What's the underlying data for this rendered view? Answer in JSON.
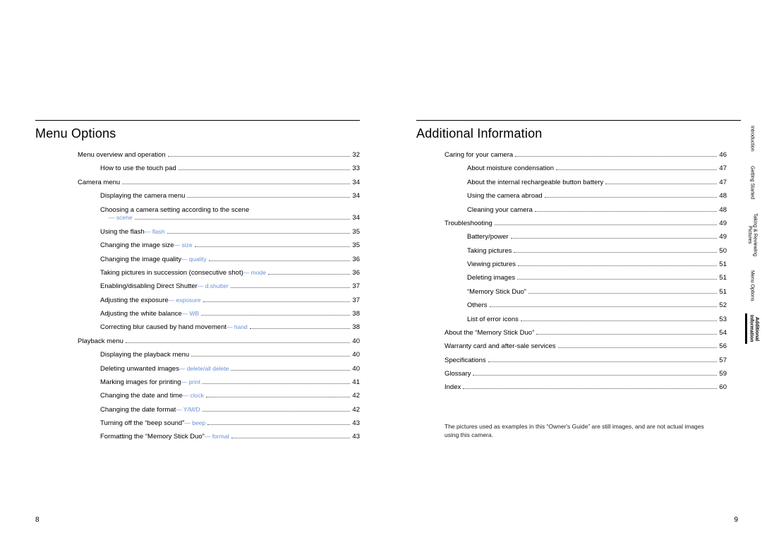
{
  "page_left": {
    "title": "Menu Options",
    "page_number": "8",
    "entries": [
      {
        "indent": 0,
        "label": "Menu overview and operation",
        "tag": "",
        "page": "32"
      },
      {
        "indent": 1,
        "label": "How to use the touch pad",
        "tag": "",
        "page": "33"
      },
      {
        "indent": 0,
        "label": "Camera menu",
        "tag": "",
        "page": "34"
      },
      {
        "indent": 1,
        "label": "Displaying the camera menu",
        "tag": "",
        "page": "34"
      },
      {
        "indent": 1,
        "wrap": true,
        "label": "Choosing a camera setting according to the scene",
        "tag": "— scene",
        "page": "34"
      },
      {
        "indent": 1,
        "label": "Using the flash ",
        "tag": "— flash",
        "page": "35"
      },
      {
        "indent": 1,
        "label": "Changing the image size ",
        "tag": "— size",
        "page": "35"
      },
      {
        "indent": 1,
        "label": "Changing the image quality ",
        "tag": "— quality",
        "page": "36"
      },
      {
        "indent": 1,
        "label": "Taking pictures in succession (consecutive shot) ",
        "tag": "— mode",
        "page": "36"
      },
      {
        "indent": 1,
        "label": "Enabling/disabling Direct Shutter ",
        "tag": "— d.shutter",
        "page": "37"
      },
      {
        "indent": 1,
        "label": "Adjusting the exposure ",
        "tag": "— exposure",
        "page": "37"
      },
      {
        "indent": 1,
        "label": "Adjusting the white balance ",
        "tag": "— WB",
        "page": "38"
      },
      {
        "indent": 1,
        "label": "Correcting blur caused by hand movement ",
        "tag": "— hand",
        "page": "38"
      },
      {
        "indent": 0,
        "label": "Playback menu",
        "tag": "",
        "page": "40"
      },
      {
        "indent": 1,
        "label": "Displaying the playback menu",
        "tag": "",
        "page": "40"
      },
      {
        "indent": 1,
        "label": "Deleting unwanted images ",
        "tag": "— delete/all delete",
        "page": "40"
      },
      {
        "indent": 1,
        "label": "Marking images for printing ",
        "tag": "— print",
        "page": "41"
      },
      {
        "indent": 1,
        "label": "Changing the date and time ",
        "tag": "— clock",
        "page": "42"
      },
      {
        "indent": 1,
        "label": "Changing the date format ",
        "tag": "— Y/M/D",
        "page": "42"
      },
      {
        "indent": 1,
        "label": "Turning off the “beep sound” ",
        "tag": "— beep",
        "page": "43"
      },
      {
        "indent": 1,
        "label": "Formatting the “Memory Stick Duo” ",
        "tag": "— format",
        "page": "43"
      }
    ]
  },
  "page_right": {
    "title": "Additional Information",
    "page_number": "9",
    "entries": [
      {
        "indent": 0,
        "label": "Caring for your camera",
        "tag": "",
        "page": "46"
      },
      {
        "indent": 1,
        "label": "About moisture condensation",
        "tag": "",
        "page": "47"
      },
      {
        "indent": 1,
        "label": "About the internal rechargeable button battery",
        "tag": "",
        "page": "47"
      },
      {
        "indent": 1,
        "label": "Using the camera abroad",
        "tag": "",
        "page": "48"
      },
      {
        "indent": 1,
        "label": "Cleaning your camera",
        "tag": "",
        "page": "48"
      },
      {
        "indent": 0,
        "label": "Troubleshooting",
        "tag": "",
        "page": "49"
      },
      {
        "indent": 1,
        "label": "Battery/power",
        "tag": "",
        "page": "49"
      },
      {
        "indent": 1,
        "label": "Taking pictures",
        "tag": "",
        "page": "50"
      },
      {
        "indent": 1,
        "label": "Viewing pictures",
        "tag": "",
        "page": "51"
      },
      {
        "indent": 1,
        "label": "Deleting images",
        "tag": "",
        "page": "51"
      },
      {
        "indent": 1,
        "label": "“Memory Stick Duo”",
        "tag": "",
        "page": "51"
      },
      {
        "indent": 1,
        "label": "Others",
        "tag": "",
        "page": "52"
      },
      {
        "indent": 1,
        "label": "List of error icons",
        "tag": "",
        "page": "53"
      },
      {
        "indent": 0,
        "label": "About the “Memory Stick Duo”",
        "tag": "",
        "page": "54"
      },
      {
        "indent": 0,
        "label": "Warranty card and after-sale services",
        "tag": "",
        "page": "56"
      },
      {
        "indent": 0,
        "label": "Specifications",
        "tag": "",
        "page": "57"
      },
      {
        "indent": 0,
        "label": "Glossary",
        "tag": "",
        "page": "59"
      },
      {
        "indent": 0,
        "label": "Index",
        "tag": "",
        "page": "60"
      }
    ],
    "note": "The pictures used as examples in this “Owner's Guide” are still images, and are not actual images using this camera."
  },
  "tabs": [
    {
      "label": "Introduction",
      "active": false
    },
    {
      "label": "Getting Started",
      "active": false
    },
    {
      "label": "Taking & Reviewing\nPictures",
      "active": false
    },
    {
      "label": "Menu Options",
      "active": false
    },
    {
      "label": "Additional\nInformation",
      "active": true
    }
  ]
}
